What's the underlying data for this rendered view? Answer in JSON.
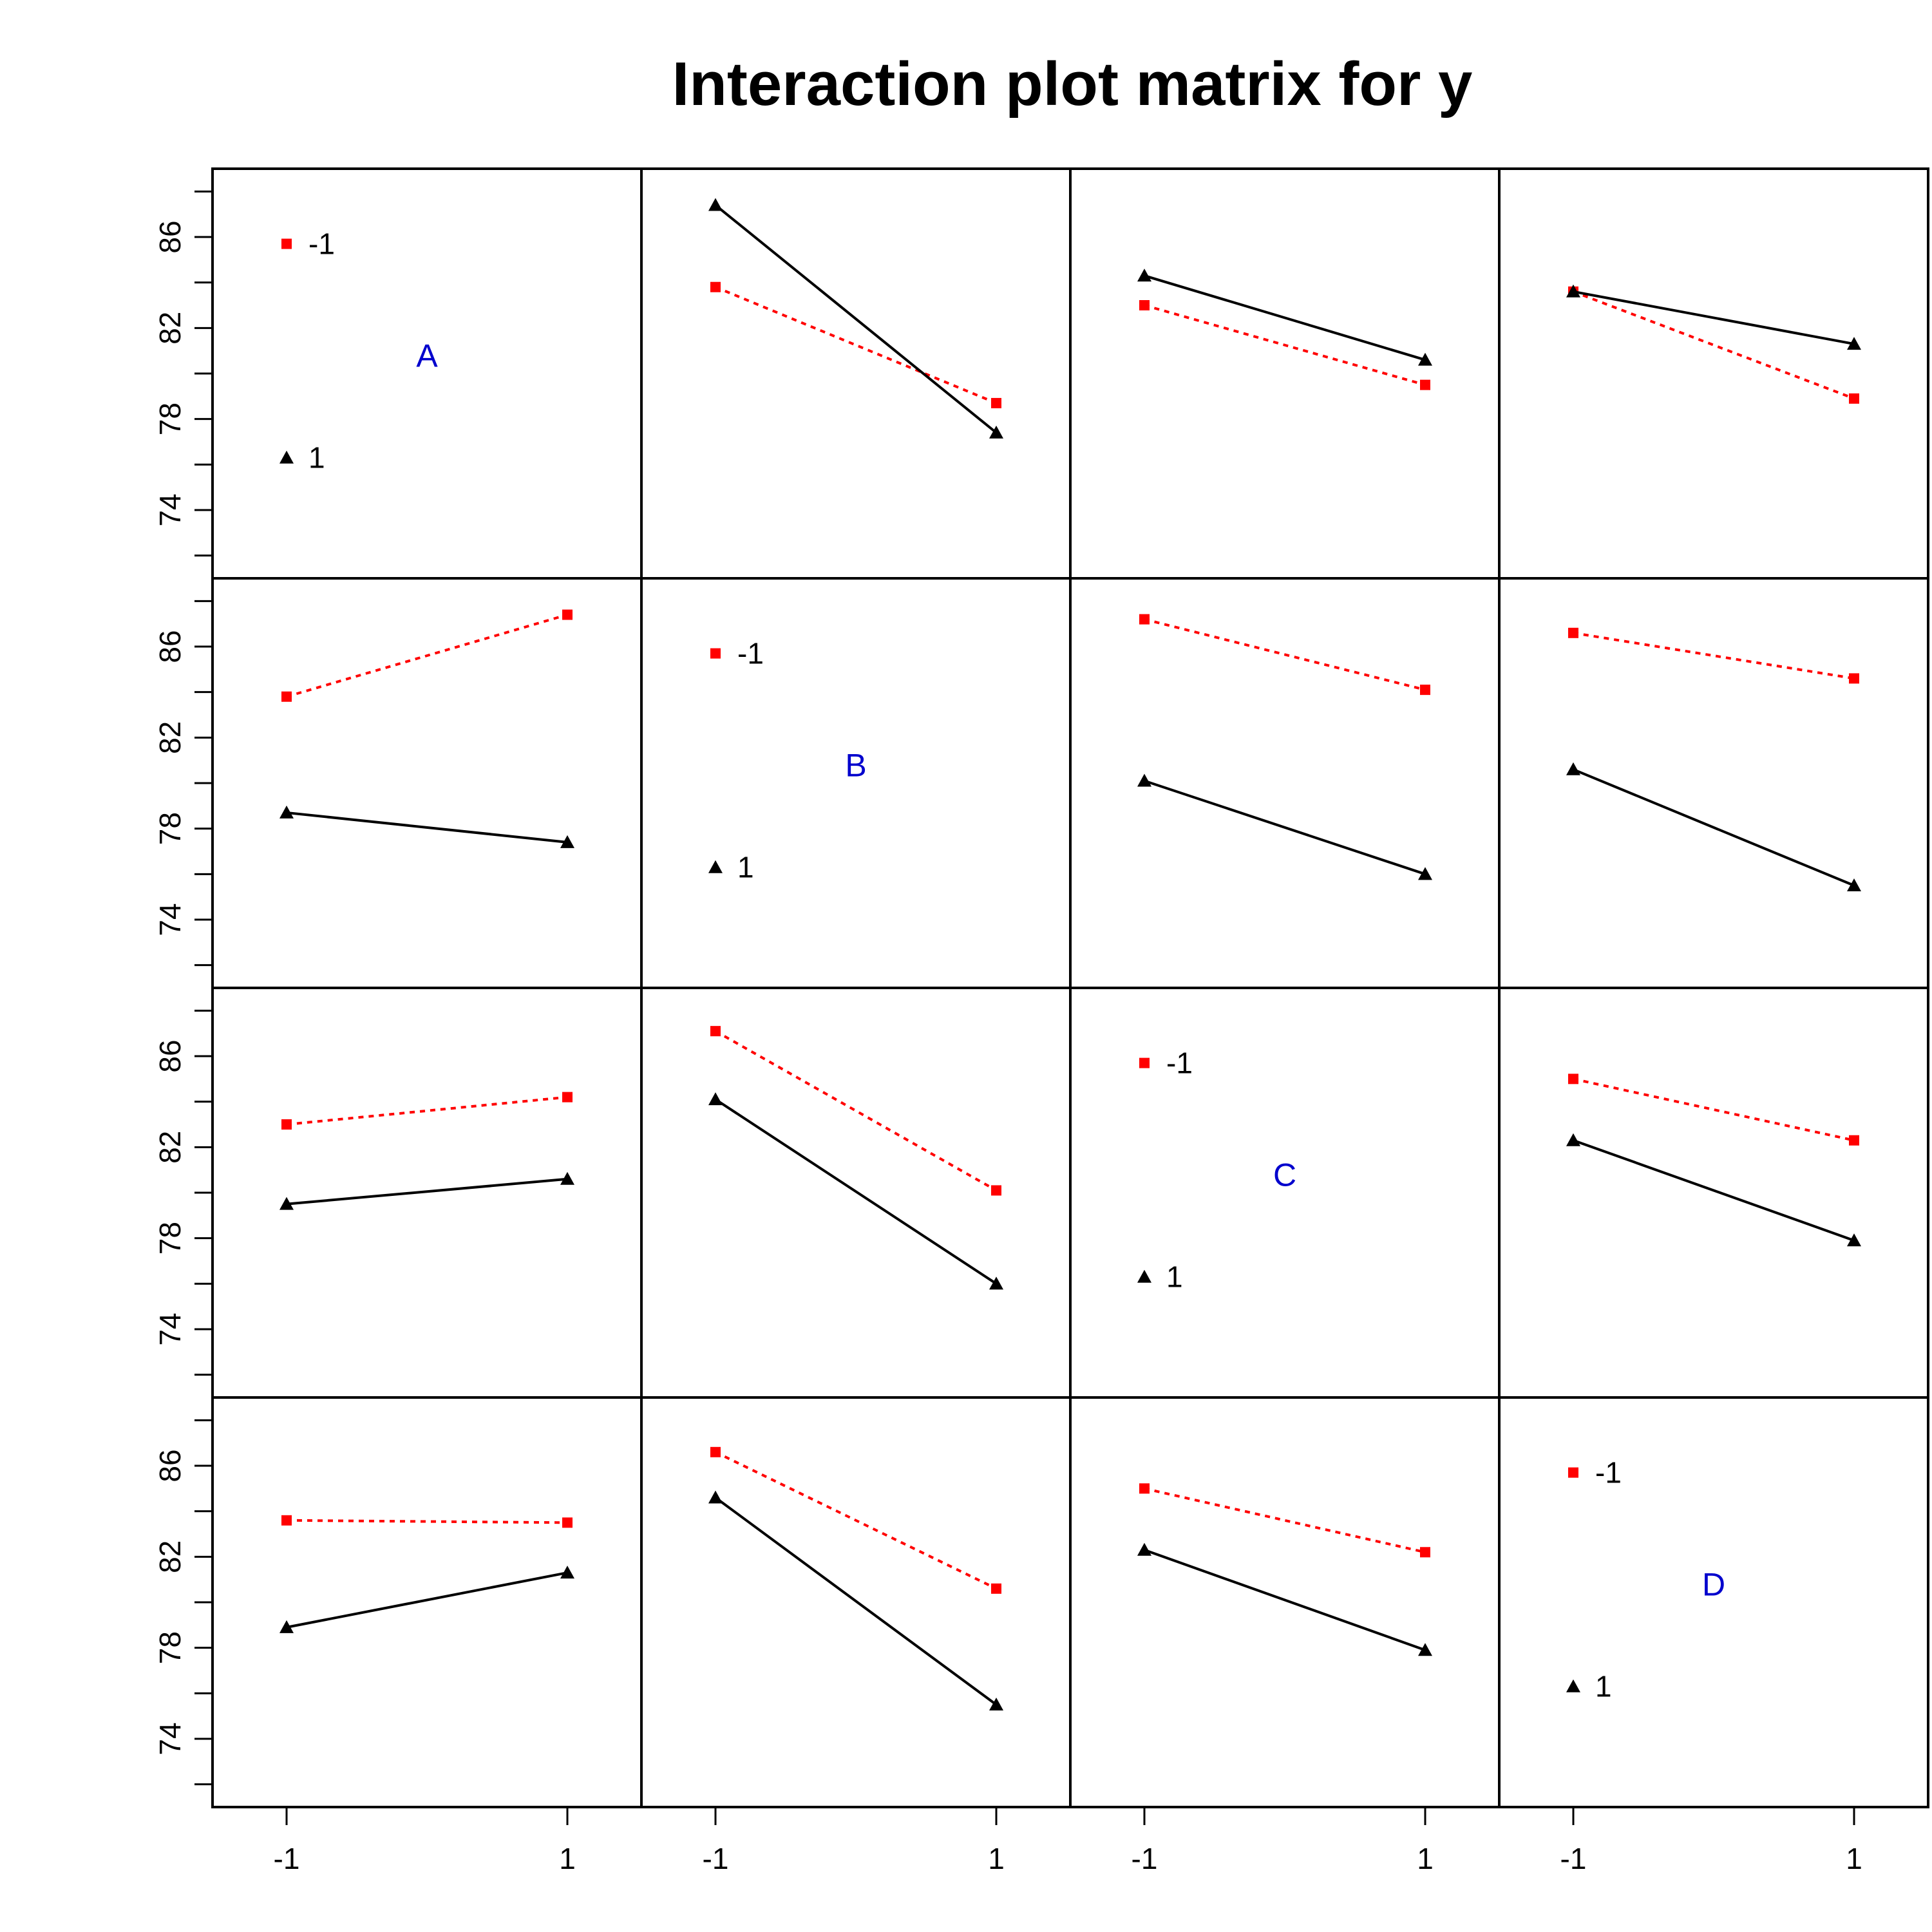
{
  "chart_data": {
    "type": "line",
    "title": "Interaction plot matrix for y",
    "factors": [
      "A",
      "B",
      "C",
      "D"
    ],
    "levels": [
      "-1",
      "1"
    ],
    "x_tick_labels": [
      "-1",
      "1"
    ],
    "y_ticks": [
      74,
      78,
      82,
      86
    ],
    "y_tick_labels": [
      "74",
      "78",
      "82",
      "86"
    ],
    "ylim": [
      71,
      89
    ],
    "grid": false,
    "colors": {
      "level_-1": "#ff0000",
      "level_1": "#000000",
      "factor_label": "#0000cd"
    },
    "series_styles": {
      "level_-1": "red dotted line, square markers",
      "level_1": "black solid line, triangle markers"
    },
    "diagonal_legend": [
      {
        "label": "-1",
        "y": 85.7
      },
      {
        "label": "1",
        "y": 76.3
      }
    ],
    "panels": [
      {
        "row": 1,
        "col": 2,
        "series": [
          {
            "level": "-1",
            "values": [
              83.8,
              78.7
            ]
          },
          {
            "level": "1",
            "values": [
              87.4,
              77.4
            ]
          }
        ]
      },
      {
        "row": 1,
        "col": 3,
        "series": [
          {
            "level": "-1",
            "values": [
              83.0,
              79.5
            ]
          },
          {
            "level": "1",
            "values": [
              84.3,
              80.6
            ]
          }
        ]
      },
      {
        "row": 1,
        "col": 4,
        "series": [
          {
            "level": "-1",
            "values": [
              83.6,
              78.9
            ]
          },
          {
            "level": "1",
            "values": [
              83.6,
              81.3
            ]
          }
        ]
      },
      {
        "row": 2,
        "col": 1,
        "series": [
          {
            "level": "-1",
            "values": [
              83.8,
              87.4
            ]
          },
          {
            "level": "1",
            "values": [
              78.7,
              77.4
            ]
          }
        ]
      },
      {
        "row": 2,
        "col": 3,
        "series": [
          {
            "level": "-1",
            "values": [
              87.2,
              84.1
            ]
          },
          {
            "level": "1",
            "values": [
              80.1,
              76.0
            ]
          }
        ]
      },
      {
        "row": 2,
        "col": 4,
        "series": [
          {
            "level": "-1",
            "values": [
              86.6,
              84.6
            ]
          },
          {
            "level": "1",
            "values": [
              80.6,
              75.5
            ]
          }
        ]
      },
      {
        "row": 3,
        "col": 1,
        "series": [
          {
            "level": "-1",
            "values": [
              83.0,
              84.2
            ]
          },
          {
            "level": "1",
            "values": [
              79.5,
              80.6
            ]
          }
        ]
      },
      {
        "row": 3,
        "col": 2,
        "series": [
          {
            "level": "-1",
            "values": [
              87.1,
              80.1
            ]
          },
          {
            "level": "1",
            "values": [
              84.1,
              76.0
            ]
          }
        ]
      },
      {
        "row": 3,
        "col": 4,
        "series": [
          {
            "level": "-1",
            "values": [
              85.0,
              82.3
            ]
          },
          {
            "level": "1",
            "values": [
              82.3,
              77.9
            ]
          }
        ]
      },
      {
        "row": 4,
        "col": 1,
        "series": [
          {
            "level": "-1",
            "values": [
              83.6,
              83.5
            ]
          },
          {
            "level": "1",
            "values": [
              78.9,
              81.3
            ]
          }
        ]
      },
      {
        "row": 4,
        "col": 2,
        "series": [
          {
            "level": "-1",
            "values": [
              86.6,
              80.6
            ]
          },
          {
            "level": "1",
            "values": [
              84.6,
              75.5
            ]
          }
        ]
      },
      {
        "row": 4,
        "col": 3,
        "series": [
          {
            "level": "-1",
            "values": [
              85.0,
              82.2
            ]
          },
          {
            "level": "1",
            "values": [
              82.3,
              77.9
            ]
          }
        ]
      }
    ]
  }
}
